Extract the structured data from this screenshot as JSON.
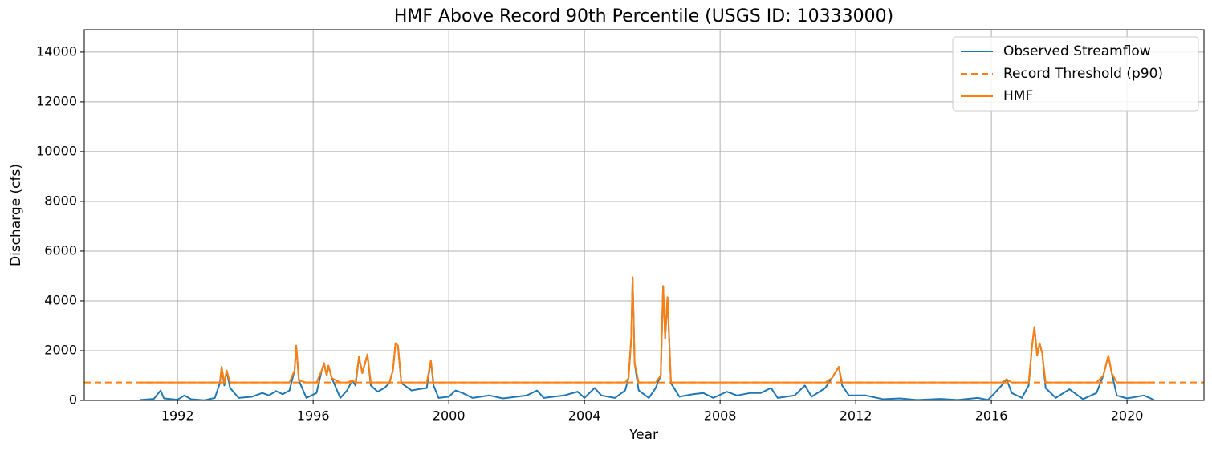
{
  "chart_data": {
    "type": "line",
    "title": "HMF Above Record 90th Percentile (USGS ID: 10333000)",
    "xlabel": "Year",
    "ylabel": "Discharge (cfs)",
    "xlim": [
      1989.25,
      2022.27
    ],
    "xticks": [
      1992,
      1996,
      2000,
      2004,
      2008,
      2012,
      2016,
      2020
    ],
    "ylim": [
      0,
      14900
    ],
    "yticks": [
      0,
      2000,
      4000,
      6000,
      8000,
      10000,
      12000,
      14000
    ],
    "grid": true,
    "legend": "upper right",
    "x": [
      1990.9,
      1991.3,
      1991.5,
      1991.6,
      1992.0,
      1992.2,
      1992.4,
      1992.8,
      1993.1,
      1993.25,
      1993.3,
      1993.38,
      1993.45,
      1993.55,
      1993.8,
      1994.2,
      1994.5,
      1994.7,
      1994.9,
      1995.1,
      1995.3,
      1995.45,
      1995.5,
      1995.58,
      1995.8,
      1996.1,
      1996.25,
      1996.32,
      1996.4,
      1996.45,
      1996.55,
      1996.8,
      1997.0,
      1997.15,
      1997.25,
      1997.35,
      1997.45,
      1997.6,
      1997.7,
      1997.9,
      1998.1,
      1998.25,
      1998.35,
      1998.43,
      1998.5,
      1998.6,
      1998.9,
      1999.1,
      1999.35,
      1999.47,
      1999.55,
      1999.7,
      2000.0,
      2000.2,
      2000.4,
      2000.7,
      2001.2,
      2001.6,
      2002.3,
      2002.6,
      2002.8,
      2003.4,
      2003.8,
      2004.0,
      2004.3,
      2004.5,
      2004.9,
      2005.2,
      2005.3,
      2005.38,
      2005.42,
      2005.48,
      2005.6,
      2005.9,
      2006.1,
      2006.25,
      2006.32,
      2006.38,
      2006.45,
      2006.55,
      2006.8,
      2007.2,
      2007.5,
      2007.8,
      2008.2,
      2008.5,
      2008.9,
      2009.2,
      2009.5,
      2009.7,
      2010.2,
      2010.5,
      2010.7,
      2011.1,
      2011.3,
      2011.5,
      2011.6,
      2011.8,
      2012.3,
      2012.8,
      2013.3,
      2013.8,
      2014.5,
      2015.0,
      2015.6,
      2015.9,
      2016.1,
      2016.3,
      2016.45,
      2016.6,
      2016.9,
      2017.1,
      2017.2,
      2017.27,
      2017.35,
      2017.42,
      2017.5,
      2017.6,
      2017.9,
      2018.3,
      2018.45,
      2018.7,
      2019.1,
      2019.3,
      2019.45,
      2019.55,
      2019.7,
      2020.0,
      2020.5,
      2020.8
    ],
    "series": [
      {
        "name": "Observed Streamflow",
        "color": "#1f77b4",
        "style": "solid",
        "values": [
          20,
          60,
          400,
          80,
          30,
          200,
          50,
          10,
          100,
          700,
          1350,
          600,
          1200,
          500,
          100,
          150,
          300,
          200,
          380,
          250,
          400,
          1200,
          2200,
          800,
          100,
          300,
          1200,
          1500,
          1000,
          1400,
          900,
          100,
          400,
          800,
          600,
          1750,
          1100,
          1850,
          600,
          350,
          500,
          700,
          1200,
          2300,
          2200,
          700,
          400,
          450,
          500,
          1600,
          600,
          100,
          150,
          400,
          300,
          100,
          200,
          80,
          200,
          400,
          100,
          200,
          350,
          100,
          500,
          200,
          100,
          400,
          900,
          2500,
          4950,
          1500,
          400,
          100,
          500,
          1000,
          4600,
          2500,
          4150,
          700,
          150,
          250,
          300,
          100,
          350,
          200,
          300,
          300,
          500,
          100,
          200,
          600,
          150,
          500,
          900,
          1350,
          600,
          200,
          200,
          50,
          80,
          20,
          60,
          20,
          100,
          20,
          300,
          600,
          850,
          300,
          100,
          600,
          2200,
          2950,
          1800,
          2300,
          1900,
          500,
          100,
          450,
          300,
          50,
          300,
          1000,
          1800,
          1100,
          200,
          80,
          200,
          20
        ]
      },
      {
        "name": "Record Threshold (p90)",
        "color": "#ff7f0e",
        "style": "dashed",
        "value": 720
      },
      {
        "name": "HMF",
        "color": "#ff7f0e",
        "style": "solid",
        "values": [
          720,
          720,
          720,
          720,
          720,
          720,
          720,
          720,
          720,
          720,
          1350,
          720,
          1200,
          720,
          720,
          720,
          720,
          720,
          720,
          720,
          720,
          1200,
          2200,
          800,
          720,
          720,
          1200,
          1500,
          1000,
          1400,
          900,
          720,
          720,
          800,
          720,
          1750,
          1100,
          1850,
          720,
          720,
          720,
          720,
          1200,
          2300,
          2200,
          720,
          720,
          720,
          720,
          1600,
          720,
          720,
          720,
          720,
          720,
          720,
          720,
          720,
          720,
          720,
          720,
          720,
          720,
          720,
          720,
          720,
          720,
          720,
          900,
          2500,
          4950,
          1500,
          720,
          720,
          720,
          1000,
          4600,
          2500,
          4150,
          720,
          720,
          720,
          720,
          720,
          720,
          720,
          720,
          720,
          720,
          720,
          720,
          720,
          720,
          720,
          900,
          1350,
          720,
          720,
          720,
          720,
          720,
          720,
          720,
          720,
          720,
          720,
          720,
          720,
          850,
          720,
          720,
          720,
          2200,
          2950,
          1800,
          2300,
          1900,
          720,
          720,
          720,
          720,
          720,
          720,
          1000,
          1800,
          1100,
          720,
          720,
          720,
          720
        ]
      }
    ]
  }
}
